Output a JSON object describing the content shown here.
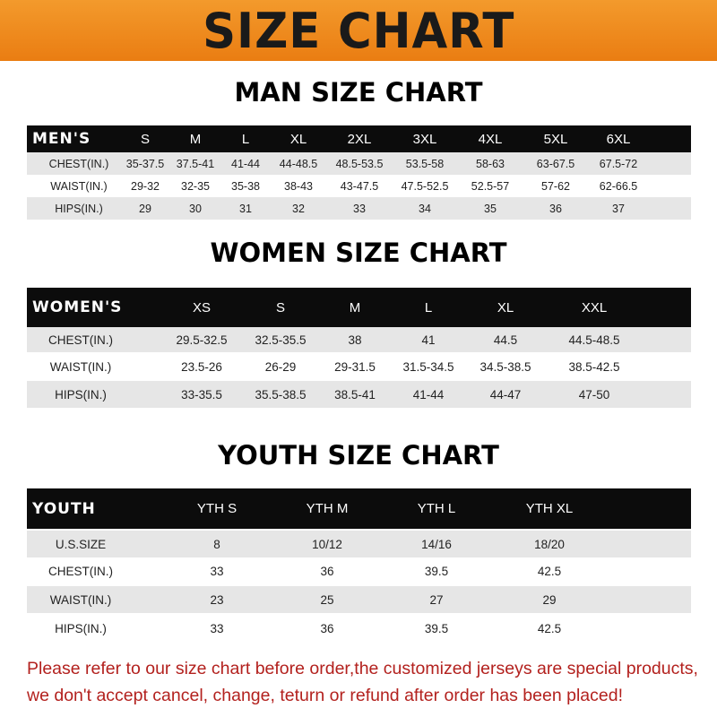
{
  "title": "SIZE CHART",
  "men": {
    "title": "MAN SIZE CHART",
    "header": [
      "MEN'S",
      "S",
      "M",
      "L",
      "XL",
      "2XL",
      "3XL",
      "4XL",
      "5XL",
      "6XL"
    ],
    "rows": [
      [
        "CHEST(IN.)",
        "35-37.5",
        "37.5-41",
        "41-44",
        "44-48.5",
        "48.5-53.5",
        "53.5-58",
        "58-63",
        "63-67.5",
        "67.5-72"
      ],
      [
        "WAIST(IN.)",
        "29-32",
        "32-35",
        "35-38",
        "38-43",
        "43-47.5",
        "47.5-52.5",
        "52.5-57",
        "57-62",
        "62-66.5"
      ],
      [
        "HIPS(IN.)",
        "29",
        "30",
        "31",
        "32",
        "33",
        "34",
        "35",
        "36",
        "37"
      ]
    ]
  },
  "women": {
    "title": "WOMEN SIZE CHART",
    "header": [
      "WOMEN'S",
      "XS",
      "S",
      "M",
      "L",
      "XL",
      "XXL"
    ],
    "rows": [
      [
        "CHEST(IN.)",
        "29.5-32.5",
        "32.5-35.5",
        "38",
        "41",
        "44.5",
        "44.5-48.5"
      ],
      [
        "WAIST(IN.)",
        "23.5-26",
        "26-29",
        "29-31.5",
        "31.5-34.5",
        "34.5-38.5",
        "38.5-42.5"
      ],
      [
        "HIPS(IN.)",
        "33-35.5",
        "35.5-38.5",
        "38.5-41",
        "41-44",
        "44-47",
        "47-50"
      ]
    ]
  },
  "youth": {
    "title": "YOUTH SIZE CHART",
    "header": [
      "YOUTH",
      "YTH S",
      "YTH M",
      "YTH L",
      "YTH XL"
    ],
    "rows": [
      [
        "U.S.SIZE",
        "8",
        "10/12",
        "14/16",
        "18/20"
      ],
      [
        "CHEST(IN.)",
        "33",
        "36",
        "39.5",
        "42.5"
      ],
      [
        "WAIST(IN.)",
        "23",
        "25",
        "27",
        "29"
      ],
      [
        "HIPS(IN.)",
        "33",
        "36",
        "39.5",
        "42.5"
      ]
    ]
  },
  "notice": [
    "Please refer to our size chart before order,the customized jerseys are special products,",
    "we don't accept cancel, change, teturn or refund after order has been placed!"
  ],
  "colors": {
    "banner": "#ef8a1e",
    "header_row": "#0c0c0c",
    "stripe": "#e6e6e6",
    "notice": "#b3211e"
  }
}
